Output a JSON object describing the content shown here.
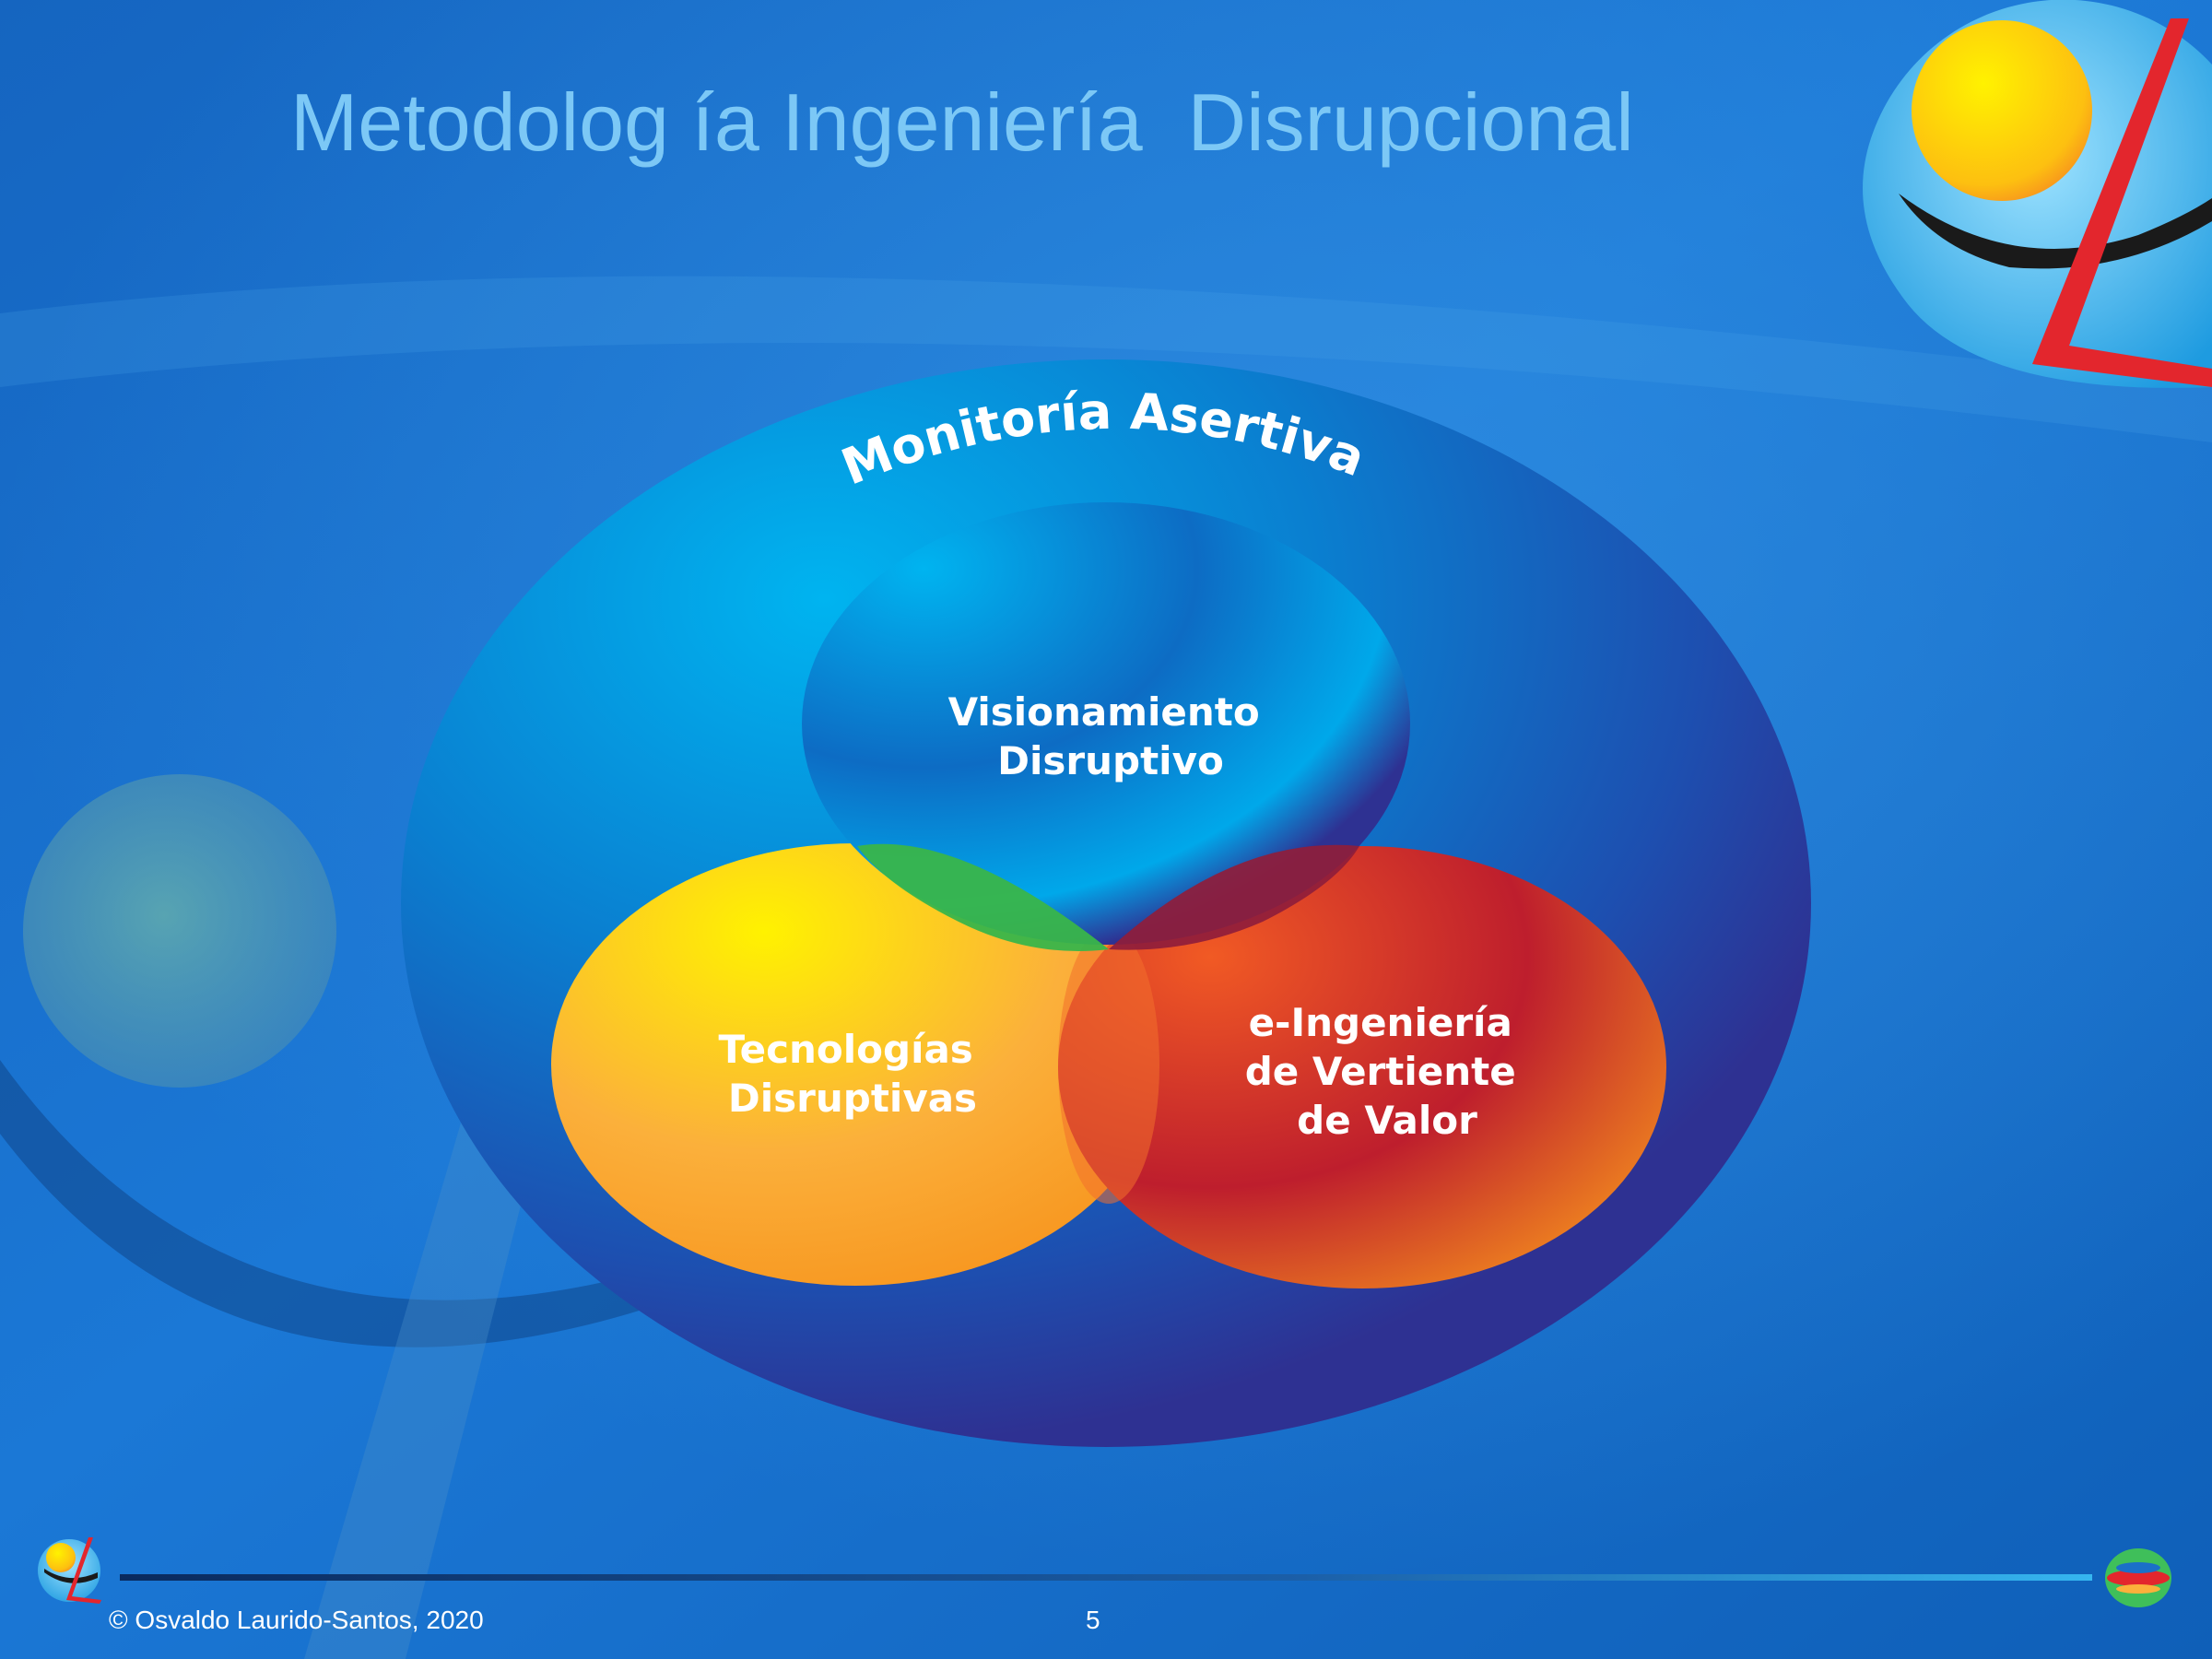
{
  "slide": {
    "title": "Metodolog ía Ingeniería  Disrupcional",
    "footer": {
      "copyright": "© Osvaldo Laurido-Santos, 2020",
      "page_number": "5"
    }
  },
  "diagram": {
    "outer_label": "Monitoría Asertiva",
    "circles": [
      {
        "id": "top",
        "lines": [
          "Visionamiento",
          "Disruptivo"
        ]
      },
      {
        "id": "left",
        "lines": [
          "Tecnologías",
          "Disruptivas"
        ]
      },
      {
        "id": "right",
        "lines": [
          "e-Ingeniería",
          "de Vertiente",
          "de Valor"
        ]
      }
    ]
  },
  "colors": {
    "background": "#1a6fc4",
    "title": "#7cc8f6",
    "outer_edge": "#2e3192",
    "inner_blue": "#00aeef",
    "yellow": "#fff200",
    "orange": "#f7941d",
    "red": "#be1e2d",
    "green_overlap": "#39b54a"
  },
  "icons": {
    "logo_top_right": "sun-person-logo-icon",
    "logo_bottom_left": "sun-person-logo-icon",
    "logo_bottom_right": "globe-logo-icon"
  }
}
